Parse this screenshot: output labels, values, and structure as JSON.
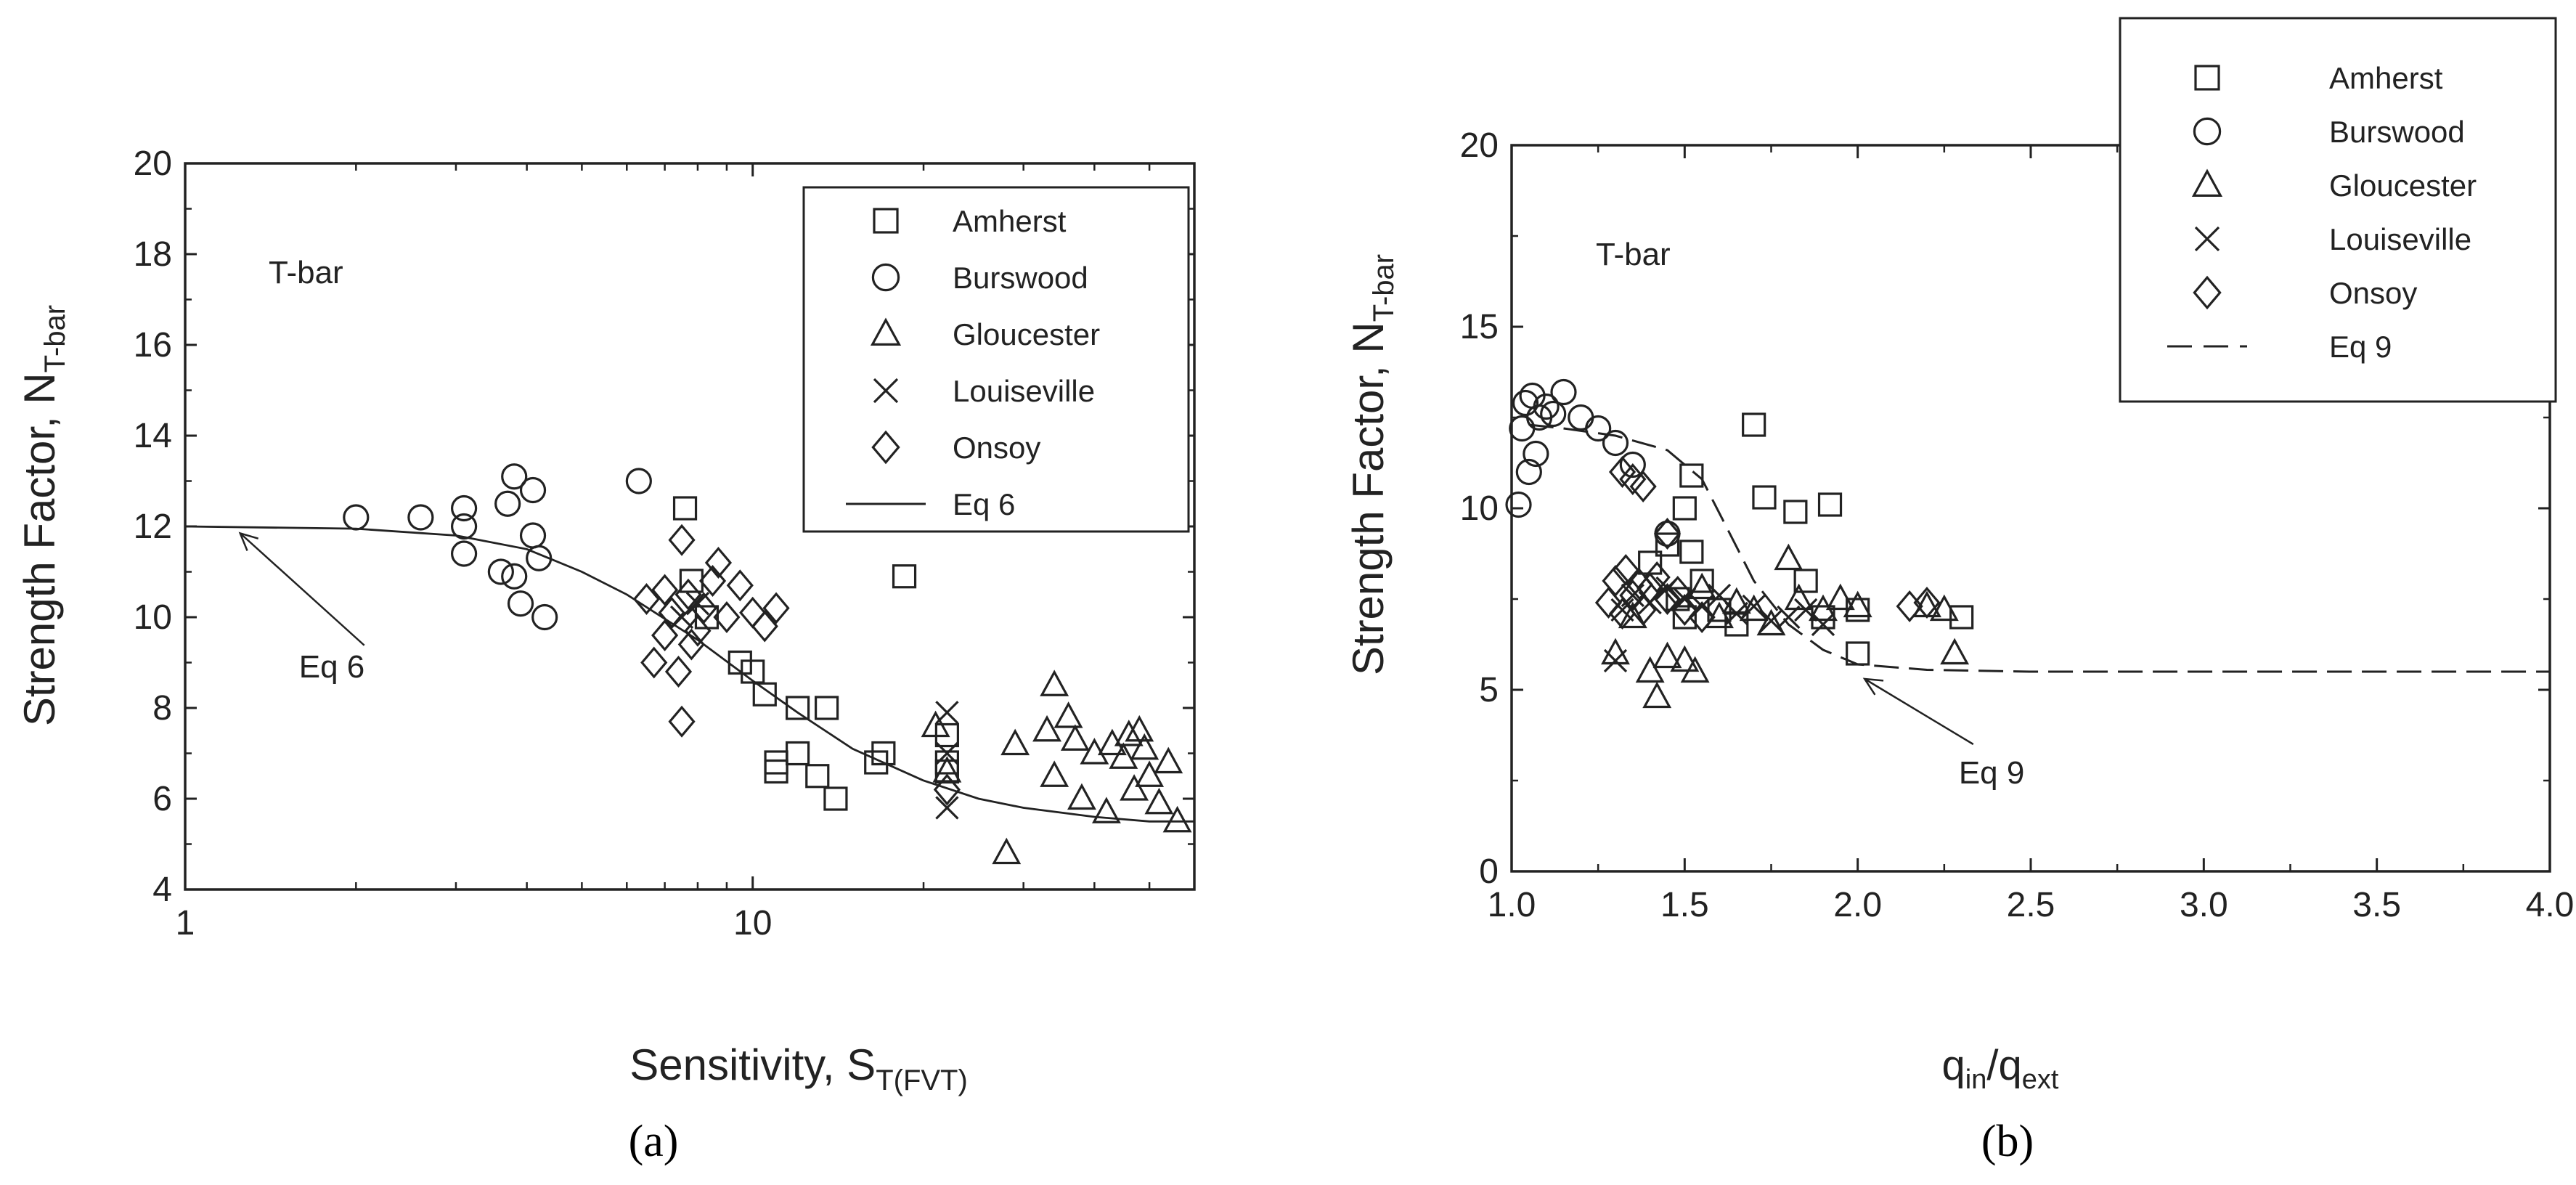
{
  "chart_data": [
    {
      "type": "scatter",
      "panel_label": "(a)",
      "title": "",
      "annotation": "T-bar",
      "xlabel": "Sensitivity, S",
      "xlabel_sub": "T(FVT)",
      "ylabel": "Strength Factor, N",
      "ylabel_sub": "T-bar",
      "xscale": "log",
      "xlim": [
        1,
        60
      ],
      "ylim": [
        4,
        20
      ],
      "xticks": [
        1,
        10
      ],
      "yticks": [
        4,
        6,
        8,
        10,
        12,
        14,
        16,
        18,
        20
      ],
      "legend_position": "top-right",
      "legend": [
        "Amherst",
        "Burswood",
        "Gloucester",
        "Louiseville",
        "Onsoy",
        "Eq 6"
      ],
      "curve": {
        "name": "Eq 6",
        "style": "solid",
        "x": [
          1,
          2,
          3,
          4,
          5,
          6,
          8,
          10,
          12,
          15,
          20,
          25,
          30,
          40,
          50,
          60
        ],
        "y": [
          12,
          11.95,
          11.8,
          11.5,
          11.0,
          10.5,
          9.5,
          8.6,
          7.9,
          7.1,
          6.4,
          6.0,
          5.8,
          5.6,
          5.5,
          5.5
        ]
      },
      "arrow_label": {
        "text": "Eq 6",
        "x": 1.95,
        "y": 8.9,
        "to_x": 1.25,
        "to_y": 11.85
      },
      "series": [
        {
          "name": "Amherst",
          "marker": "square",
          "points": [
            [
              7.6,
              12.4
            ],
            [
              7.8,
              10.8
            ],
            [
              8.3,
              10.0
            ],
            [
              9.5,
              9.0
            ],
            [
              10,
              8.8
            ],
            [
              10.5,
              8.3
            ],
            [
              11,
              6.8
            ],
            [
              11,
              6.6
            ],
            [
              12,
              7.0
            ],
            [
              12,
              8.0
            ],
            [
              13,
              6.5
            ],
            [
              13.5,
              8.0
            ],
            [
              14,
              6.0
            ],
            [
              16.5,
              6.8
            ],
            [
              17,
              7.0
            ],
            [
              18.5,
              10.9
            ],
            [
              22,
              7.4
            ],
            [
              22,
              6.8
            ],
            [
              22,
              6.6
            ]
          ]
        },
        {
          "name": "Burswood",
          "marker": "circle",
          "points": [
            [
              2,
              12.2
            ],
            [
              2.6,
              12.2
            ],
            [
              3.1,
              12.0
            ],
            [
              3.1,
              12.4
            ],
            [
              3.1,
              11.4
            ],
            [
              3.6,
              11.0
            ],
            [
              3.7,
              12.5
            ],
            [
              3.8,
              13.1
            ],
            [
              3.8,
              10.9
            ],
            [
              3.9,
              10.3
            ],
            [
              4.1,
              12.8
            ],
            [
              4.1,
              11.8
            ],
            [
              4.2,
              11.3
            ],
            [
              4.3,
              10.0
            ],
            [
              6.3,
              13.0
            ]
          ]
        },
        {
          "name": "Gloucester",
          "marker": "triangle",
          "points": [
            [
              21,
              7.6
            ],
            [
              22,
              6.6
            ],
            [
              28,
              4.8
            ],
            [
              29,
              7.2
            ],
            [
              33,
              7.5
            ],
            [
              34,
              8.5
            ],
            [
              34,
              6.5
            ],
            [
              36,
              7.8
            ],
            [
              37,
              7.3
            ],
            [
              38,
              6.0
            ],
            [
              40,
              7.0
            ],
            [
              42,
              5.7
            ],
            [
              43,
              7.2
            ],
            [
              45,
              6.9
            ],
            [
              46,
              7.4
            ],
            [
              47,
              6.2
            ],
            [
              48,
              7.5
            ],
            [
              49,
              7.1
            ],
            [
              50,
              6.5
            ],
            [
              52,
              5.9
            ],
            [
              54,
              6.8
            ],
            [
              56,
              5.5
            ]
          ]
        },
        {
          "name": "Louiseville",
          "marker": "cross",
          "points": [
            [
              22,
              5.8
            ],
            [
              22,
              7.0
            ],
            [
              22,
              7.9
            ],
            [
              7.5,
              10.0
            ],
            [
              8.0,
              10.3
            ]
          ]
        },
        {
          "name": "Onsoy",
          "marker": "diamond",
          "points": [
            [
              6.5,
              10.4
            ],
            [
              6.7,
              9.0
            ],
            [
              7,
              10.6
            ],
            [
              7,
              9.6
            ],
            [
              7.2,
              10.1
            ],
            [
              7.4,
              8.8
            ],
            [
              7.5,
              11.7
            ],
            [
              7.5,
              7.7
            ],
            [
              7.7,
              10.5
            ],
            [
              7.8,
              9.4
            ],
            [
              8,
              9.7
            ],
            [
              8.2,
              10.2
            ],
            [
              8.5,
              10.8
            ],
            [
              8.7,
              11.2
            ],
            [
              9,
              10.0
            ],
            [
              9.5,
              10.7
            ],
            [
              10,
              10.1
            ],
            [
              10.5,
              9.8
            ],
            [
              11,
              10.2
            ],
            [
              22,
              6.2
            ]
          ]
        }
      ]
    },
    {
      "type": "scatter",
      "panel_label": "(b)",
      "title": "",
      "annotation": "T-bar",
      "xlabel": "q",
      "xlabel_sub1": "in",
      "xlabel_slash": "/q",
      "xlabel_sub2": "ext",
      "ylabel": "Strength Factor, N",
      "ylabel_sub": "T-bar",
      "xscale": "linear",
      "xlim": [
        1.0,
        4.0
      ],
      "ylim": [
        0,
        20
      ],
      "xticks": [
        "1.0",
        "1.5",
        "2.0",
        "2.5",
        "3.0",
        "3.5",
        "4.0"
      ],
      "yticks": [
        0,
        5,
        10,
        15,
        20
      ],
      "legend_position": "top-right",
      "legend": [
        "Amherst",
        "Burswood",
        "Gloucester",
        "Louiseville",
        "Onsoy",
        "Eq 9"
      ],
      "curve": {
        "name": "Eq 9",
        "style": "dashed",
        "x": [
          1.05,
          1.15,
          1.3,
          1.45,
          1.55,
          1.62,
          1.7,
          1.8,
          1.9,
          2.0,
          2.2,
          2.5,
          3.0,
          3.5,
          4.0
        ],
        "y": [
          12.3,
          12.2,
          12.0,
          11.6,
          10.8,
          9.5,
          8.0,
          6.8,
          6.1,
          5.7,
          5.55,
          5.5,
          5.5,
          5.5,
          5.5
        ]
      },
      "arrow_label": {
        "text": "Eq 9",
        "x": 2.25,
        "y": 2.7,
        "to_x": 2.02,
        "to_y": 5.3
      },
      "series": [
        {
          "name": "Amherst",
          "marker": "square",
          "points": [
            [
              1.4,
              8.5
            ],
            [
              1.45,
              9.0
            ],
            [
              1.5,
              10.0
            ],
            [
              1.52,
              10.9
            ],
            [
              1.52,
              8.8
            ],
            [
              1.48,
              7.5
            ],
            [
              1.5,
              7.0
            ],
            [
              1.55,
              8.0
            ],
            [
              1.7,
              12.3
            ],
            [
              1.73,
              10.3
            ],
            [
              1.82,
              9.9
            ],
            [
              1.85,
              8.0
            ],
            [
              1.92,
              10.1
            ],
            [
              1.9,
              7.0
            ],
            [
              2.0,
              6.0
            ],
            [
              2.0,
              7.2
            ],
            [
              2.3,
              7.0
            ],
            [
              1.6,
              7.2
            ],
            [
              1.65,
              6.8
            ]
          ]
        },
        {
          "name": "Burswood",
          "marker": "circle",
          "points": [
            [
              1.02,
              10.1
            ],
            [
              1.03,
              12.2
            ],
            [
              1.04,
              12.9
            ],
            [
              1.05,
              11.0
            ],
            [
              1.06,
              13.1
            ],
            [
              1.07,
              11.5
            ],
            [
              1.08,
              12.5
            ],
            [
              1.1,
              12.8
            ],
            [
              1.12,
              12.6
            ],
            [
              1.15,
              13.2
            ],
            [
              1.2,
              12.5
            ],
            [
              1.25,
              12.2
            ],
            [
              1.3,
              11.8
            ],
            [
              1.35,
              11.2
            ],
            [
              1.45,
              9.3
            ]
          ]
        },
        {
          "name": "Gloucester",
          "marker": "triangle",
          "points": [
            [
              1.3,
              6.0
            ],
            [
              1.35,
              7.0
            ],
            [
              1.4,
              5.5
            ],
            [
              1.42,
              4.8
            ],
            [
              1.45,
              5.9
            ],
            [
              1.5,
              5.8
            ],
            [
              1.53,
              5.5
            ],
            [
              1.6,
              7.0
            ],
            [
              1.7,
              7.2
            ],
            [
              1.75,
              6.8
            ],
            [
              1.8,
              8.6
            ],
            [
              1.83,
              7.5
            ],
            [
              1.9,
              7.2
            ],
            [
              1.95,
              7.5
            ],
            [
              2.0,
              7.3
            ],
            [
              2.2,
              7.3
            ],
            [
              2.25,
              7.2
            ],
            [
              2.28,
              6.0
            ],
            [
              1.55,
              7.8
            ],
            [
              1.65,
              7.4
            ]
          ]
        },
        {
          "name": "Louiseville",
          "marker": "cross",
          "points": [
            [
              1.3,
              5.8
            ],
            [
              1.32,
              7.2
            ],
            [
              1.35,
              7.6
            ],
            [
              1.4,
              7.4
            ],
            [
              1.45,
              7.8
            ],
            [
              1.5,
              7.5
            ],
            [
              1.55,
              7.3
            ],
            [
              1.6,
              7.6
            ],
            [
              1.65,
              7.1
            ],
            [
              1.7,
              7.3
            ],
            [
              1.75,
              6.9
            ],
            [
              1.8,
              7.0
            ],
            [
              1.85,
              7.2
            ],
            [
              1.9,
              6.8
            ]
          ]
        },
        {
          "name": "Onsoy",
          "marker": "diamond",
          "points": [
            [
              1.28,
              7.4
            ],
            [
              1.3,
              8.0
            ],
            [
              1.32,
              7.1
            ],
            [
              1.33,
              8.3
            ],
            [
              1.35,
              7.6
            ],
            [
              1.37,
              7.9
            ],
            [
              1.38,
              7.2
            ],
            [
              1.4,
              7.8
            ],
            [
              1.42,
              8.1
            ],
            [
              1.45,
              7.5
            ],
            [
              1.48,
              7.7
            ],
            [
              1.32,
              11.0
            ],
            [
              1.35,
              10.8
            ],
            [
              1.38,
              10.6
            ],
            [
              1.45,
              9.3
            ],
            [
              1.5,
              7.2
            ],
            [
              1.55,
              7.0
            ],
            [
              2.15,
              7.3
            ],
            [
              2.2,
              7.4
            ]
          ]
        }
      ]
    }
  ]
}
